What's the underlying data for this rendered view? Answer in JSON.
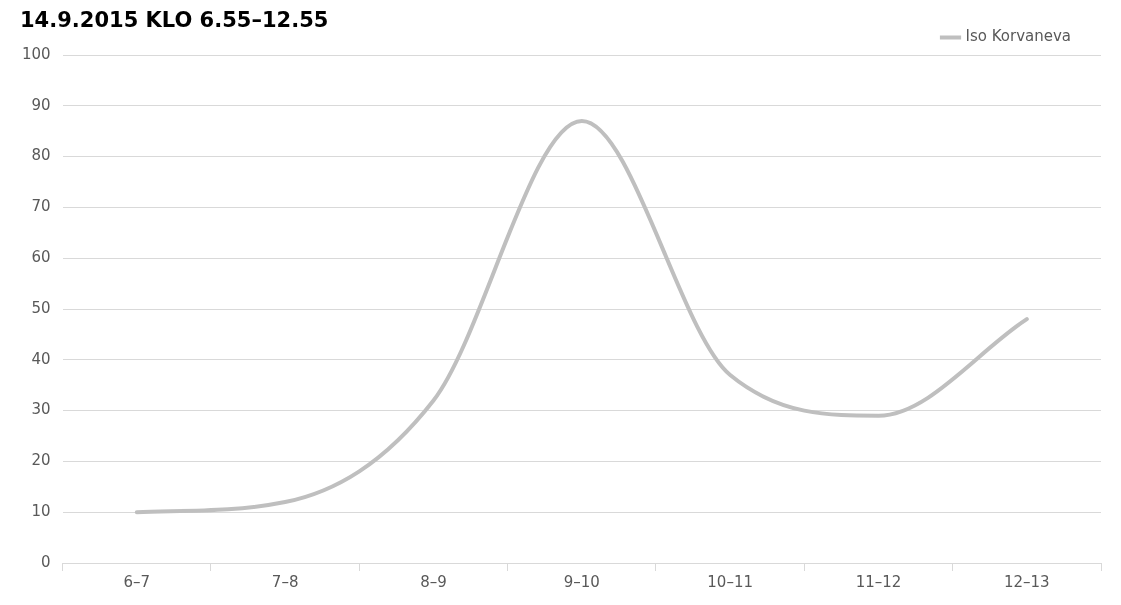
{
  "chart_data": {
    "type": "line",
    "title": "14.9.2015 KLO 6.55–12.55",
    "categories": [
      "6–7",
      "7–8",
      "8–9",
      "9–10",
      "10–11",
      "11–12",
      "12–13"
    ],
    "series": [
      {
        "name": "Iso Korvaneva",
        "color": "#bfbfbf",
        "values": [
          10,
          12,
          32,
          87,
          37,
          29,
          48
        ]
      }
    ],
    "ylim": [
      0,
      100
    ],
    "yticks": [
      0,
      10,
      20,
      30,
      40,
      50,
      60,
      70,
      80,
      90,
      100
    ],
    "grid": "y",
    "legend": "top right",
    "marker": "none",
    "line_style": "solid"
  }
}
